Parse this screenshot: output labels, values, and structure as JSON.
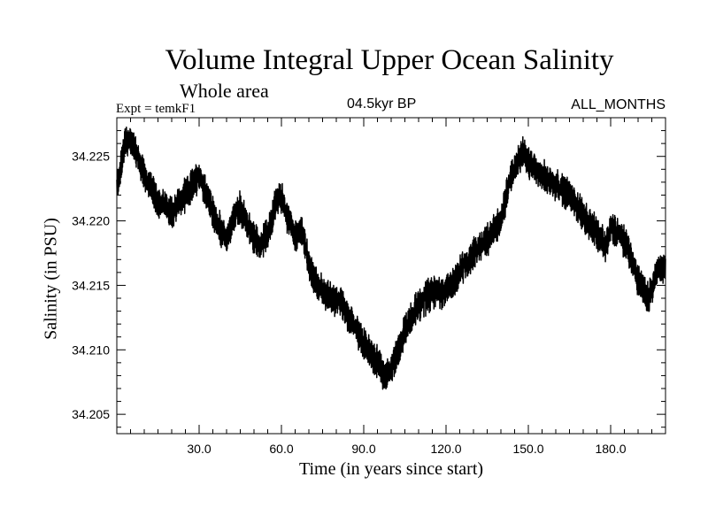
{
  "chart_data": {
    "type": "line",
    "title": "Volume Integral Upper Ocean Salinity",
    "subtitle": "Whole area",
    "experiment": "Expt = temkF1",
    "period": "04.5kyr BP",
    "months": "ALL_MONTHS",
    "xlabel": "Time (in years since start)",
    "ylabel": "Salinity (in PSU)",
    "xlim": [
      0,
      200
    ],
    "ylim": [
      34.2035,
      34.228
    ],
    "xticks": [
      30,
      60,
      90,
      120,
      150,
      180
    ],
    "xtick_labels": [
      "30.0",
      "60.0",
      "90.0",
      "120.0",
      "150.0",
      "180.0"
    ],
    "yticks": [
      34.205,
      34.21,
      34.215,
      34.22,
      34.225
    ],
    "ytick_labels": [
      "34.205",
      "34.210",
      "34.215",
      "34.220",
      "34.225"
    ],
    "noise_amplitude": 0.0011,
    "series": [
      {
        "name": "salinity",
        "note": "monthly values; smoothed trend estimated from figure, high-frequency noise added",
        "trend_x": [
          0,
          3,
          6,
          10,
          15,
          20,
          25,
          28,
          30,
          33,
          36,
          40,
          43,
          45,
          48,
          52,
          55,
          58,
          60,
          62,
          65,
          68,
          70,
          73,
          75,
          78,
          82,
          86,
          90,
          95,
          98,
          100,
          105,
          110,
          115,
          120,
          125,
          130,
          135,
          140,
          143,
          146,
          148,
          150,
          155,
          160,
          165,
          170,
          175,
          178,
          180,
          183,
          186,
          190,
          194,
          197,
          200
        ],
        "trend_y": [
          34.2225,
          34.2262,
          34.226,
          34.2235,
          34.2215,
          34.2207,
          34.222,
          34.223,
          34.2235,
          34.222,
          34.22,
          34.2185,
          34.2205,
          34.221,
          34.2195,
          34.218,
          34.219,
          34.2215,
          34.2218,
          34.2205,
          34.219,
          34.219,
          34.2165,
          34.215,
          34.2145,
          34.214,
          34.2135,
          34.212,
          34.2105,
          34.209,
          34.208,
          34.2085,
          34.2115,
          34.2135,
          34.2145,
          34.2145,
          34.216,
          34.2175,
          34.2185,
          34.22,
          34.223,
          34.2245,
          34.2255,
          34.2245,
          34.2235,
          34.2228,
          34.222,
          34.2205,
          34.219,
          34.218,
          34.2195,
          34.219,
          34.218,
          34.2155,
          34.214,
          34.216,
          34.2165
        ]
      }
    ]
  }
}
